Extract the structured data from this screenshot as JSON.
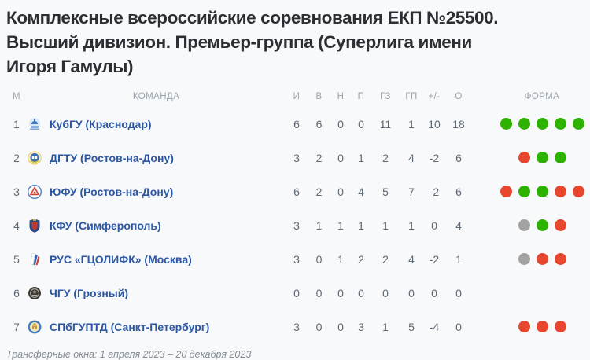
{
  "title": {
    "lines": [
      "Комплексные всероссийские соревнования ЕКП №25500.",
      "Высший дивизион. Премьер-группа (Суперлига имени",
      "Игоря Гамулы)"
    ]
  },
  "table": {
    "headers": {
      "position": "М",
      "team": "КОМАНДА",
      "played": "И",
      "wins": "В",
      "draws": "Н",
      "losses": "П",
      "goals_scored": "ГЗ",
      "goals_conceded": "ГП",
      "goal_diff": "+/-",
      "points": "О",
      "form": "ФОРМА"
    },
    "rows": [
      {
        "pos": "1",
        "team": "КубГУ (Краснодар)",
        "logo": "kubgu",
        "played": "6",
        "wins": "6",
        "draws": "0",
        "losses": "0",
        "gz": "11",
        "gp": "1",
        "diff": "10",
        "points": "18",
        "form": [
          "win",
          "win",
          "win",
          "win",
          "win"
        ]
      },
      {
        "pos": "2",
        "team": "ДГТУ (Ростов-на-Дону)",
        "logo": "dgtu",
        "played": "3",
        "wins": "2",
        "draws": "0",
        "losses": "1",
        "gz": "2",
        "gp": "4",
        "diff": "-2",
        "points": "6",
        "form": [
          "loss",
          "win",
          "win"
        ]
      },
      {
        "pos": "3",
        "team": "ЮФУ (Ростов-на-Дону)",
        "logo": "yufu",
        "played": "6",
        "wins": "2",
        "draws": "0",
        "losses": "4",
        "gz": "5",
        "gp": "7",
        "diff": "-2",
        "points": "6",
        "form": [
          "loss",
          "win",
          "win",
          "loss",
          "loss"
        ]
      },
      {
        "pos": "4",
        "team": "КФУ (Симферополь)",
        "logo": "kfu",
        "played": "3",
        "wins": "1",
        "draws": "1",
        "losses": "1",
        "gz": "1",
        "gp": "1",
        "diff": "0",
        "points": "4",
        "form": [
          "draw",
          "win",
          "loss"
        ]
      },
      {
        "pos": "5",
        "team": "РУС «ГЦОЛИФК» (Москва)",
        "logo": "rus",
        "played": "3",
        "wins": "0",
        "draws": "1",
        "losses": "2",
        "gz": "2",
        "gp": "4",
        "diff": "-2",
        "points": "1",
        "form": [
          "draw",
          "loss",
          "loss"
        ]
      },
      {
        "pos": "6",
        "team": "ЧГУ (Грозный)",
        "logo": "chgu",
        "played": "0",
        "wins": "0",
        "draws": "0",
        "losses": "0",
        "gz": "0",
        "gp": "0",
        "diff": "0",
        "points": "0",
        "form": []
      },
      {
        "pos": "7",
        "team": "СПбГУПТД (Санкт-Петербург)",
        "logo": "spbguptd",
        "played": "3",
        "wins": "0",
        "draws": "0",
        "losses": "3",
        "gz": "1",
        "gp": "5",
        "diff": "-4",
        "points": "0",
        "form": [
          "loss",
          "loss",
          "loss"
        ]
      }
    ]
  },
  "footer": {
    "transfer_note": "Трансферные окна: 1 апреля 2023 – 20 декабря 2023"
  },
  "colors": {
    "win": "#2db200",
    "loss": "#e8472f",
    "draw": "#a3a3a3",
    "team_link": "#2b57a5",
    "title_text": "#2b2f34",
    "header_text": "#9aa4ad",
    "stat_text": "#5d6975",
    "background": "#f8f9fa"
  }
}
